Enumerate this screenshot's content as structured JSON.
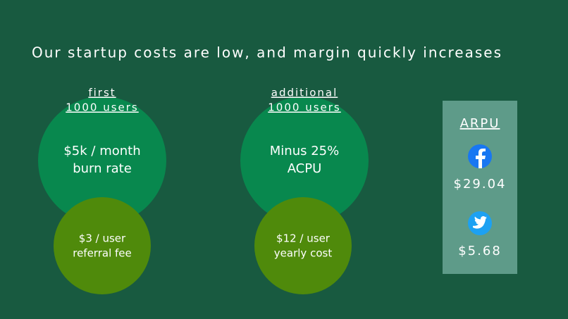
{
  "title": "Our startup costs are low, and margin quickly increases",
  "columns": [
    {
      "heading": [
        "first",
        "1000 users"
      ],
      "big_circle": [
        "$5k / month",
        "burn rate"
      ],
      "small_circle": [
        "$3 / user",
        "referral fee"
      ]
    },
    {
      "heading": [
        "additional",
        "1000 users"
      ],
      "big_circle": [
        "Minus 25%",
        "ACPU"
      ],
      "small_circle": [
        "$12 / user",
        "yearly cost"
      ]
    }
  ],
  "arpu": {
    "label": "ARPU",
    "values": [
      "$29.04",
      "$5.68"
    ]
  }
}
